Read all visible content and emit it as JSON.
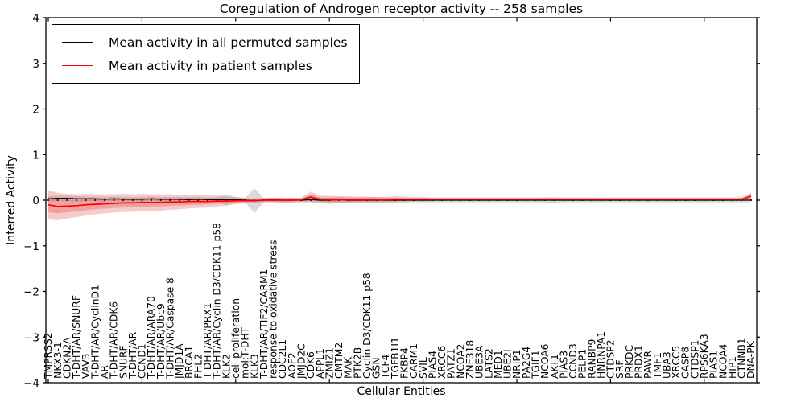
{
  "chart_data": {
    "type": "line",
    "title": "Coregulation of Androgen receptor activity -- 258 samples",
    "xlabel": "Cellular Entities",
    "ylabel": "Inferred Activity",
    "ylim": [
      -4,
      4
    ],
    "ytick_values": [
      4,
      3,
      2,
      1,
      0,
      -1,
      -2,
      -3,
      -4
    ],
    "ytick_labels": [
      "4",
      "3",
      "2",
      "1",
      "0",
      "−1",
      "−2",
      "−3",
      "−4"
    ],
    "xtick_positions": [
      0,
      10,
      20,
      30,
      40,
      50,
      60,
      70
    ],
    "zero_reference_line": true,
    "grid": false,
    "legend_position": "upper left",
    "categories": [
      "TMPRSS2",
      "NKX3-1",
      "CDKN2A",
      "T-DHT/AR/SNURF",
      "VAV3",
      "T-DHT/AR/CyclinD1",
      "AR",
      "T-DHT/AR/CDK6",
      "SNURF",
      "T-DHT/AR",
      "CCND1",
      "T-DHT/AR/ARA70",
      "T-DHT/AR/Ubc9",
      "T-DHT/AR/Caspase 8",
      "JMJD1A",
      "BRCA1",
      "FHL2",
      "T-DHT/AR/PRX1",
      "T-DHT/AR/Cyclin D3/CDK11 p58",
      "KLK2",
      "cell proliferation",
      "mol:T-DHT",
      "KLK3",
      "T-DHT/AR/TIF2/CARM1",
      "response to oxidative stress",
      "CDC2L1",
      "AOF2",
      "JMJD2C",
      "CDK6",
      "APPL1",
      "ZMIZ1",
      "CMTM2",
      "MAK",
      "PTK2B",
      "Cyclin D3/CDK11 p58",
      "GSN",
      "TCF4",
      "TGFB1I1",
      "FKBP4",
      "CARM1",
      "SVIL",
      "PIAS4",
      "XRCC6",
      "PATZ1",
      "NCOA2",
      "ZNF318",
      "UBE3A",
      "LATS2",
      "MED1",
      "UBE2I",
      "NRIP1",
      "PA2G4",
      "TGIF1",
      "NCOA6",
      "AKT1",
      "PIAS3",
      "CCND3",
      "PELP1",
      "RANBP9",
      "HNRNPA1",
      "CTDSP2",
      "SRF",
      "PRKDC",
      "PRDX1",
      "PAWR",
      "TMF1",
      "UBA3",
      "XRCC5",
      "CASP8",
      "CTDSP1",
      "RPS6KA3",
      "PIAS1",
      "NCOA4",
      "HIP1",
      "CTNNB1",
      "DNA-PK"
    ],
    "series": [
      {
        "name": "Mean activity in all permuted samples",
        "color": "#000000",
        "band_color": "#b0b0b0",
        "values": [
          0.03,
          0.04,
          0.04,
          0.03,
          0.03,
          0.03,
          0.02,
          0.03,
          0.02,
          0.02,
          0.02,
          0.03,
          0.02,
          0.02,
          0.02,
          0.01,
          0.02,
          0.01,
          0.01,
          0.01,
          0.01,
          0.0,
          -0.01,
          0.0,
          0.01,
          0.0,
          0.0,
          0.0,
          0.01,
          0.0,
          0.0,
          0.01,
          0.0,
          0.0,
          0.0,
          0.0,
          0.0,
          0.0,
          0.0,
          0.0,
          0.0,
          0.0,
          0.0,
          0.0,
          0.0,
          0.0,
          0.0,
          0.0,
          0.0,
          0.0,
          0.0,
          0.0,
          0.0,
          0.0,
          0.0,
          0.0,
          0.0,
          0.0,
          0.0,
          0.0,
          0.0,
          0.0,
          0.0,
          0.0,
          0.0,
          0.0,
          0.0,
          0.0,
          0.0,
          0.0,
          0.0,
          0.0,
          0.0,
          0.0,
          0.0,
          0.0
        ],
        "std": [
          0.06,
          0.06,
          0.06,
          0.06,
          0.05,
          0.05,
          0.05,
          0.05,
          0.05,
          0.05,
          0.05,
          0.05,
          0.05,
          0.05,
          0.05,
          0.05,
          0.05,
          0.05,
          0.06,
          0.12,
          0.06,
          0.05,
          0.27,
          0.05,
          0.05,
          0.05,
          0.05,
          0.05,
          0.05,
          0.05,
          0.06,
          0.06,
          0.06,
          0.06,
          0.07,
          0.07,
          0.06,
          0.05,
          0.05,
          0.05,
          0.05,
          0.05,
          0.05,
          0.05,
          0.05,
          0.05,
          0.05,
          0.05,
          0.05,
          0.05,
          0.05,
          0.05,
          0.05,
          0.06,
          0.06,
          0.05,
          0.05,
          0.05,
          0.05,
          0.05,
          0.05,
          0.05,
          0.05,
          0.05,
          0.05,
          0.05,
          0.05,
          0.05,
          0.05,
          0.05,
          0.05,
          0.05,
          0.05,
          0.05,
          0.05,
          0.05
        ]
      },
      {
        "name": "Mean activity in patient samples",
        "color": "#ff0000",
        "band_color": "#dd4444",
        "values": [
          -0.1,
          -0.14,
          -0.13,
          -0.12,
          -0.1,
          -0.09,
          -0.08,
          -0.07,
          -0.06,
          -0.06,
          -0.05,
          -0.05,
          -0.05,
          -0.04,
          -0.04,
          -0.03,
          -0.03,
          -0.03,
          -0.02,
          -0.02,
          -0.01,
          -0.01,
          -0.01,
          0.0,
          0.0,
          0.0,
          0.0,
          0.01,
          0.07,
          0.02,
          0.01,
          0.01,
          0.01,
          0.01,
          0.01,
          0.01,
          0.01,
          0.02,
          0.02,
          0.02,
          0.02,
          0.02,
          0.02,
          0.02,
          0.02,
          0.02,
          0.02,
          0.02,
          0.02,
          0.02,
          0.02,
          0.02,
          0.02,
          0.02,
          0.02,
          0.02,
          0.02,
          0.02,
          0.02,
          0.02,
          0.02,
          0.02,
          0.02,
          0.02,
          0.02,
          0.02,
          0.02,
          0.02,
          0.02,
          0.02,
          0.02,
          0.02,
          0.02,
          0.02,
          0.02,
          0.09
        ],
        "std": [
          0.32,
          0.3,
          0.27,
          0.25,
          0.24,
          0.22,
          0.21,
          0.2,
          0.2,
          0.19,
          0.19,
          0.18,
          0.18,
          0.17,
          0.16,
          0.15,
          0.14,
          0.13,
          0.12,
          0.1,
          0.08,
          0.06,
          0.05,
          0.05,
          0.05,
          0.06,
          0.05,
          0.05,
          0.12,
          0.08,
          0.09,
          0.08,
          0.08,
          0.07,
          0.07,
          0.06,
          0.06,
          0.07,
          0.06,
          0.05,
          0.05,
          0.04,
          0.04,
          0.04,
          0.04,
          0.04,
          0.04,
          0.04,
          0.04,
          0.04,
          0.04,
          0.04,
          0.04,
          0.04,
          0.04,
          0.04,
          0.04,
          0.04,
          0.04,
          0.04,
          0.04,
          0.04,
          0.04,
          0.04,
          0.04,
          0.04,
          0.04,
          0.04,
          0.04,
          0.04,
          0.04,
          0.04,
          0.04,
          0.04,
          0.04,
          0.08
        ]
      }
    ]
  }
}
